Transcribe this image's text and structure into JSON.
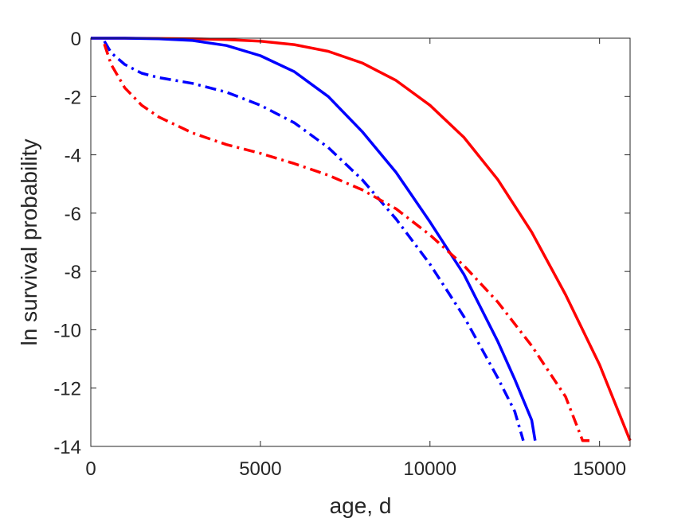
{
  "chart_data": {
    "type": "line",
    "title": "",
    "xlabel": "age, d",
    "ylabel": "ln survival probability",
    "xlim": [
      0,
      15900
    ],
    "ylim": [
      -14,
      0
    ],
    "xticks": [
      0,
      5000,
      10000,
      15000
    ],
    "yticks": [
      0,
      -2,
      -4,
      -6,
      -8,
      -10,
      -12,
      -14
    ],
    "grid": false,
    "legend": "none",
    "series": [
      {
        "color": "#ff0000",
        "style": "solid",
        "x": [
          0,
          1000,
          2000,
          3000,
          4000,
          5000,
          6000,
          7000,
          8000,
          9000,
          10000,
          11000,
          12000,
          13000,
          14000,
          15000,
          15900
        ],
        "values": [
          0,
          0,
          -0.01,
          -0.02,
          -0.05,
          -0.1,
          -0.22,
          -0.45,
          -0.85,
          -1.45,
          -2.3,
          -3.4,
          -4.85,
          -6.65,
          -8.8,
          -11.2,
          -13.8
        ]
      },
      {
        "color": "#0000ff",
        "style": "solid",
        "x": [
          0,
          1000,
          2000,
          3000,
          4000,
          5000,
          6000,
          7000,
          8000,
          9000,
          10000,
          11000,
          12000,
          12500,
          13000,
          13100
        ],
        "values": [
          0,
          0,
          -0.02,
          -0.08,
          -0.25,
          -0.6,
          -1.15,
          -2.0,
          -3.2,
          -4.6,
          -6.3,
          -8.1,
          -10.4,
          -11.7,
          -13.1,
          -13.8
        ]
      },
      {
        "color": "#0000ff",
        "style": "dashdot",
        "x": [
          400,
          600,
          1000,
          1500,
          2000,
          3000,
          4000,
          5000,
          6000,
          7000,
          8000,
          9000,
          10000,
          11000,
          12000,
          12500,
          12750
        ],
        "values": [
          -0.1,
          -0.5,
          -0.9,
          -1.2,
          -1.35,
          -1.55,
          -1.85,
          -2.3,
          -2.9,
          -3.75,
          -4.85,
          -6.2,
          -7.75,
          -9.55,
          -11.65,
          -12.8,
          -13.8
        ]
      },
      {
        "color": "#ff0000",
        "style": "dashdot",
        "x": [
          400,
          600,
          1000,
          1500,
          2000,
          3000,
          4000,
          5000,
          6000,
          7000,
          8000,
          9000,
          10000,
          11000,
          12000,
          13000,
          14000,
          14500,
          14750
        ],
        "values": [
          -0.2,
          -0.9,
          -1.7,
          -2.3,
          -2.7,
          -3.25,
          -3.65,
          -3.95,
          -4.3,
          -4.7,
          -5.2,
          -5.85,
          -6.75,
          -7.8,
          -9.05,
          -10.55,
          -12.3,
          -13.8,
          -13.8
        ]
      }
    ]
  }
}
